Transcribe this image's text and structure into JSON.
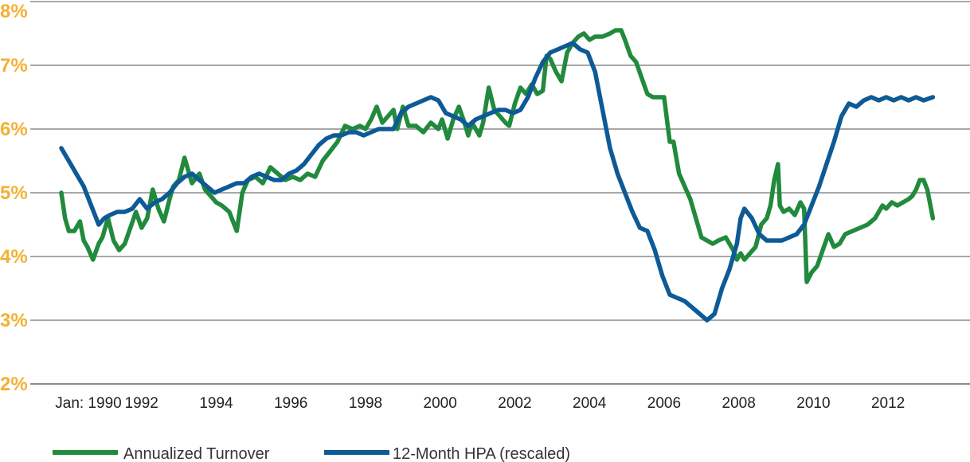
{
  "chart_data": {
    "type": "line",
    "title": "",
    "xlabel": "",
    "ylabel": "",
    "xlim": [
      1989.8,
      2013.4
    ],
    "ylim": [
      2,
      8
    ],
    "grid": true,
    "legend_position": "bottom-left",
    "y_ticks": [
      "2%",
      "3%",
      "4%",
      "5%",
      "6%",
      "7%",
      "8%"
    ],
    "y_tick_values": [
      2,
      3,
      4,
      5,
      6,
      7,
      8
    ],
    "x_tick_labels": [
      "Jan: 1990",
      "1992",
      "1994",
      "1996",
      "1998",
      "2000",
      "2002",
      "2004",
      "2006",
      "2008",
      "2010",
      "2012"
    ],
    "x_tick_values": [
      1990,
      1992,
      1994,
      1996,
      1998,
      2000,
      2002,
      2004,
      2006,
      2008,
      2010,
      2012
    ],
    "colors": {
      "tick_labels": "#f2b134",
      "grid": "#8c8c8c",
      "axis": "#8c8c8c"
    },
    "series": [
      {
        "name": "Annualized Turnover",
        "color": "#218a3c",
        "x": [
          1990.0,
          1990.1,
          1990.2,
          1990.35,
          1990.5,
          1990.6,
          1990.7,
          1990.85,
          1991.0,
          1991.1,
          1991.25,
          1991.4,
          1991.55,
          1991.7,
          1991.85,
          1992.0,
          1992.15,
          1992.3,
          1992.45,
          1992.6,
          1992.75,
          1992.9,
          1993.0,
          1993.15,
          1993.3,
          1993.5,
          1993.7,
          1993.85,
          1994.0,
          1994.15,
          1994.3,
          1994.5,
          1994.7,
          1994.85,
          1995.0,
          1995.2,
          1995.4,
          1995.6,
          1995.8,
          1996.0,
          1996.2,
          1996.4,
          1996.6,
          1996.8,
          1997.0,
          1997.2,
          1997.4,
          1997.6,
          1997.8,
          1998.0,
          1998.15,
          1998.3,
          1998.45,
          1998.6,
          1998.75,
          1998.9,
          1999.0,
          1999.15,
          1999.3,
          1999.5,
          1999.7,
          1999.9,
          2000.1,
          2000.2,
          2000.35,
          2000.5,
          2000.65,
          2000.8,
          2000.9,
          2001.0,
          2001.1,
          2001.2,
          2001.3,
          2001.45,
          2001.6,
          2001.75,
          2001.9,
          2002.0,
          2002.15,
          2002.3,
          2002.45,
          2002.6,
          2002.75,
          2002.9,
          2003.0,
          2003.1,
          2003.25,
          2003.4,
          2003.55,
          2003.7,
          2003.85,
          2004.0,
          2004.15,
          2004.3,
          2004.5,
          2004.7,
          2004.85,
          2005.0,
          2005.1,
          2005.25,
          2005.4,
          2005.55,
          2005.7,
          2005.85,
          2006.0,
          2006.15,
          2006.3,
          2006.4,
          2006.55,
          2006.7,
          2006.85,
          2007.0,
          2007.15,
          2007.3,
          2007.45,
          2007.6,
          2007.8,
          2008.0,
          2008.1,
          2008.2,
          2008.3,
          2008.45,
          2008.6,
          2008.75,
          2008.9,
          2009.0,
          2009.1,
          2009.2,
          2009.25,
          2009.35,
          2009.5,
          2009.65,
          2009.8,
          2009.9,
          2009.97,
          2010.1,
          2010.25,
          2010.4,
          2010.55,
          2010.7,
          2010.85,
          2011.0,
          2011.2,
          2011.4,
          2011.6,
          2011.8,
          2012.0,
          2012.1,
          2012.25,
          2012.4,
          2012.55,
          2012.7,
          2012.8,
          2012.9,
          2013.0,
          2013.1,
          2013.2,
          2013.35
        ],
        "values": [
          5.0,
          4.6,
          4.4,
          4.4,
          4.55,
          4.25,
          4.15,
          3.95,
          4.2,
          4.3,
          4.6,
          4.25,
          4.1,
          4.2,
          4.45,
          4.7,
          4.45,
          4.6,
          5.05,
          4.75,
          4.55,
          4.9,
          5.1,
          5.2,
          5.55,
          5.15,
          5.3,
          5.05,
          4.95,
          4.85,
          4.8,
          4.7,
          4.4,
          5.0,
          5.2,
          5.25,
          5.15,
          5.4,
          5.3,
          5.2,
          5.25,
          5.2,
          5.3,
          5.25,
          5.5,
          5.65,
          5.8,
          6.05,
          6.0,
          6.05,
          6.0,
          6.15,
          6.35,
          6.1,
          6.2,
          6.3,
          6.0,
          6.35,
          6.05,
          6.05,
          5.95,
          6.1,
          6.0,
          6.15,
          5.85,
          6.15,
          6.35,
          6.1,
          5.9,
          6.1,
          6.0,
          5.9,
          6.1,
          6.65,
          6.3,
          6.2,
          6.1,
          6.05,
          6.4,
          6.65,
          6.55,
          6.7,
          6.55,
          6.6,
          7.15,
          7.1,
          6.9,
          6.75,
          7.2,
          7.35,
          7.45,
          7.5,
          7.4,
          7.45,
          7.45,
          7.5,
          7.55,
          7.55,
          7.4,
          7.15,
          7.05,
          6.8,
          6.55,
          6.5,
          6.5,
          6.5,
          5.8,
          5.8,
          5.3,
          5.1,
          4.9,
          4.6,
          4.3,
          4.25,
          4.2,
          4.25,
          4.3,
          4.1,
          3.95,
          4.05,
          3.95,
          4.05,
          4.15,
          4.5,
          4.6,
          4.8,
          5.2,
          5.45,
          4.8,
          4.7,
          4.75,
          4.65,
          4.85,
          4.75,
          3.6,
          3.75,
          3.85,
          4.1,
          4.35,
          4.15,
          4.2,
          4.35,
          4.4,
          4.45,
          4.5,
          4.6,
          4.8,
          4.75,
          4.85,
          4.8,
          4.85,
          4.9,
          4.95,
          5.05,
          5.2,
          5.2,
          5.05,
          4.6
        ]
      },
      {
        "name": "12-Month HPA (rescaled)",
        "color": "#0d5a96",
        "x": [
          1990.0,
          1990.2,
          1990.4,
          1990.6,
          1990.8,
          1991.0,
          1991.15,
          1991.3,
          1991.5,
          1991.7,
          1991.9,
          1992.1,
          1992.3,
          1992.5,
          1992.7,
          1992.9,
          1993.1,
          1993.3,
          1993.5,
          1993.7,
          1993.9,
          1994.1,
          1994.3,
          1994.5,
          1994.7,
          1994.9,
          1995.1,
          1995.3,
          1995.5,
          1995.7,
          1995.9,
          1996.1,
          1996.3,
          1996.5,
          1996.7,
          1996.9,
          1997.1,
          1997.3,
          1997.5,
          1997.7,
          1997.9,
          1998.1,
          1998.3,
          1998.5,
          1998.7,
          1998.9,
          1999.1,
          1999.3,
          1999.5,
          1999.7,
          1999.9,
          2000.1,
          2000.3,
          2000.5,
          2000.7,
          2000.9,
          2001.1,
          2001.3,
          2001.5,
          2001.7,
          2001.9,
          2002.1,
          2002.3,
          2002.5,
          2002.7,
          2002.9,
          2003.1,
          2003.3,
          2003.5,
          2003.7,
          2003.9,
          2004.1,
          2004.3,
          2004.5,
          2004.7,
          2004.9,
          2005.1,
          2005.3,
          2005.5,
          2005.7,
          2005.9,
          2006.1,
          2006.3,
          2006.5,
          2006.7,
          2006.9,
          2007.1,
          2007.3,
          2007.5,
          2007.7,
          2007.9,
          2008.1,
          2008.2,
          2008.3,
          2008.5,
          2008.7,
          2008.9,
          2009.1,
          2009.3,
          2009.5,
          2009.7,
          2009.9,
          2010.1,
          2010.3,
          2010.5,
          2010.7,
          2010.9,
          2011.1,
          2011.3,
          2011.5,
          2011.7,
          2011.9,
          2012.1,
          2012.3,
          2012.5,
          2012.7,
          2012.9,
          2013.1,
          2013.35
        ],
        "values": [
          5.7,
          5.5,
          5.3,
          5.1,
          4.8,
          4.5,
          4.6,
          4.65,
          4.7,
          4.7,
          4.75,
          4.9,
          4.75,
          4.85,
          4.9,
          5.0,
          5.15,
          5.25,
          5.3,
          5.2,
          5.1,
          5.0,
          5.05,
          5.1,
          5.15,
          5.15,
          5.25,
          5.3,
          5.25,
          5.2,
          5.2,
          5.3,
          5.35,
          5.45,
          5.6,
          5.75,
          5.85,
          5.9,
          5.9,
          5.95,
          5.95,
          5.9,
          5.95,
          6.0,
          6.0,
          6.0,
          6.25,
          6.35,
          6.4,
          6.45,
          6.5,
          6.45,
          6.25,
          6.2,
          6.15,
          6.05,
          6.15,
          6.2,
          6.25,
          6.3,
          6.3,
          6.25,
          6.3,
          6.5,
          6.8,
          7.05,
          7.2,
          7.25,
          7.3,
          7.35,
          7.25,
          7.2,
          6.9,
          6.3,
          5.7,
          5.3,
          5.0,
          4.7,
          4.45,
          4.4,
          4.1,
          3.7,
          3.4,
          3.35,
          3.3,
          3.2,
          3.1,
          3.0,
          3.1,
          3.5,
          3.8,
          4.2,
          4.6,
          4.75,
          4.6,
          4.35,
          4.25,
          4.25,
          4.25,
          4.3,
          4.35,
          4.5,
          4.8,
          5.1,
          5.45,
          5.8,
          6.2,
          6.4,
          6.35,
          6.45,
          6.5,
          6.45,
          6.5,
          6.45,
          6.5,
          6.45,
          6.5,
          6.45,
          6.5
        ]
      }
    ]
  }
}
